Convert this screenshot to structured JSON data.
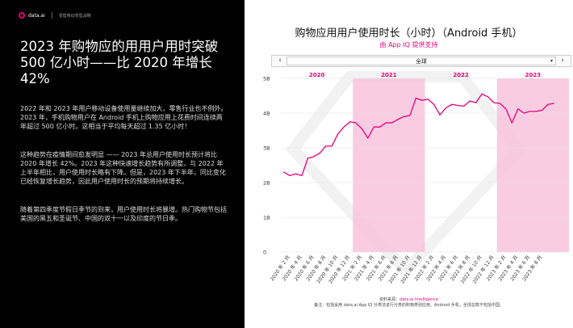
{
  "header": {
    "logo_text": "data.ai",
    "subtitle": "零售移动零售战略"
  },
  "left": {
    "title": "2023 年购物应的用用户用时突破 500 亿小时——比 2020 年增长 42%",
    "paragraphs": [
      "2022 年和 2023 年用户移动设备使用量继续加大，零售行业也不例外。2023 年，手机购物用户在 Android 手机上购物应用上花费时间连续两年超过 500 亿小时。这相当于平均每天超过 1.35 亿小时！",
      "这种趋势在疫情期间愈发明显 —— 2023 年总用户使用时长预计将比 2020 年增长 42%。2023 年这种快速增长趋势有所调整，与 2022 年上半年相比，用户使用时长略有下降。但是，2023 年下半年，同比变化已经恢复增长趋势，因此用户使用时长的预期将持续增长。",
      "随着第四季度节假日季节的到来，用户使用时长将暴增。热门购物节包括美国的黑五和圣诞节、中国的双十一以及印度的节日季。"
    ]
  },
  "chart_header": {
    "title": "购物应用用户使用时长（小时）（Android 手机）",
    "subtitle": "由 App IQ 提供支持",
    "dropdown_value": "全球",
    "nav_prev": "‹",
    "nav_next": "›"
  },
  "source": {
    "line1_prefix": "资料来源：",
    "line1_brand": "data.ai Intelligence",
    "line2": "备注：包括采用 data.ai App IQ 分类法进行分类的购物类别应用。Android 手机，全球总数不包括中国。"
  },
  "colors": {
    "accent": "#e6007e",
    "band": "#f8bfd9",
    "line": "#e6007e"
  },
  "chart_data": {
    "type": "line",
    "title": "购物应用用户使用时长（小时）（Android 手机）",
    "xlabel": "",
    "ylabel": "",
    "ylim": [
      0,
      5
    ],
    "y_ticks": [
      {
        "value": 0,
        "label": "0"
      },
      {
        "value": 1,
        "label": "1B"
      },
      {
        "value": 2,
        "label": "2B"
      },
      {
        "value": 3,
        "label": "3B"
      },
      {
        "value": 4,
        "label": "4B"
      },
      {
        "value": 5,
        "label": "5B"
      }
    ],
    "year_bands": [
      {
        "year": "2020",
        "start_index": 0,
        "end_index": 11,
        "highlight": false
      },
      {
        "year": "2021",
        "start_index": 12,
        "end_index": 23,
        "highlight": true
      },
      {
        "year": "2022",
        "start_index": 24,
        "end_index": 35,
        "highlight": false
      },
      {
        "year": "2023",
        "start_index": 36,
        "end_index": 47,
        "highlight": true
      }
    ],
    "x_tick_labels": [
      "2020 年 2 月",
      "2020 年 4 月",
      "2020 年 6 月",
      "2020 年 8 月",
      "2020 年 10 月",
      "2020 年 12 月",
      "2021 年 2 月",
      "2021 年 4 月",
      "2021 年 6 月",
      "2021 年 8 月",
      "2021 年 10 月",
      "2021 年 12 月",
      "2022 年 2 月",
      "2022 年 4 月",
      "2022 年 6 月",
      "2022 年 8 月",
      "2022 年 10 月",
      "2022 年 12 月",
      "2023 年 2 月",
      "2023 年 4 月",
      "2023 年 6 月",
      "2023 年 8 月"
    ],
    "x_tick_indices": [
      1,
      3,
      5,
      7,
      9,
      11,
      13,
      15,
      17,
      19,
      21,
      23,
      25,
      27,
      29,
      31,
      33,
      35,
      37,
      39,
      41,
      43
    ],
    "grid": true,
    "legend": "none",
    "series": [
      {
        "values": [
          2.3,
          2.2,
          2.25,
          2.2,
          2.7,
          2.75,
          2.85,
          3.05,
          3.05,
          3.4,
          3.6,
          3.75,
          3.72,
          3.55,
          3.28,
          3.6,
          3.6,
          3.72,
          3.72,
          3.82,
          3.9,
          3.93,
          4.43,
          4.37,
          4.4,
          4.25,
          3.95,
          4.15,
          4.25,
          4.22,
          4.2,
          4.35,
          4.3,
          4.55,
          4.47,
          4.3,
          4.28,
          4.12,
          3.72,
          4.12,
          4.0,
          4.05,
          4.05,
          4.08,
          4.25,
          4.28
        ]
      }
    ]
  }
}
